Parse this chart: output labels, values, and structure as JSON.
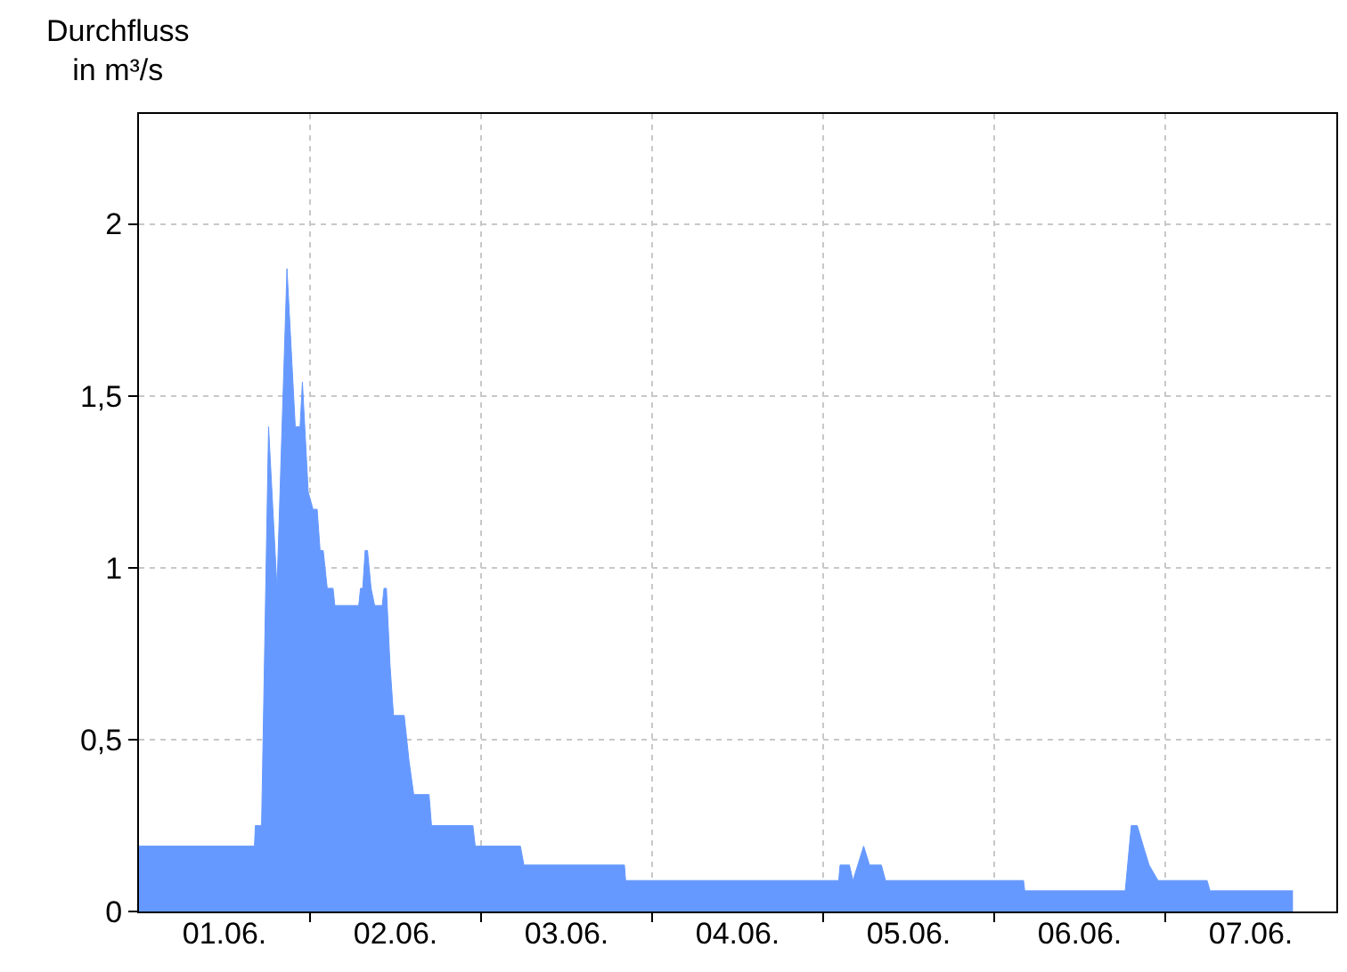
{
  "chart_data": {
    "type": "area",
    "ylabel": "Durchfluss\nin m³/s",
    "x": [
      "--06-01T00:00",
      "--06-01T16:12",
      "--06-01T16:20",
      "--06-01T17:12",
      "--06-01T18:11",
      "--06-01T19:22",
      "--06-01T20:46",
      "--06-01T21:56",
      "--06-01T22:36",
      "--06-01T22:56",
      "--06-01T23:45",
      "--06-02T00:25",
      "--06-02T01:00",
      "--06-02T01:25",
      "--06-02T01:51",
      "--06-02T02:25",
      "--06-02T03:14",
      "--06-02T03:29",
      "--06-02T06:50",
      "--06-02T07:05",
      "--06-02T07:24",
      "--06-02T07:44",
      "--06-02T08:04",
      "--06-02T08:34",
      "--06-02T09:04",
      "--06-02T10:08",
      "--06-02T10:23",
      "--06-02T10:43",
      "--06-02T11:13",
      "--06-02T11:43",
      "--06-02T13:13",
      "--06-02T13:53",
      "--06-02T14:33",
      "--06-02T16:42",
      "--06-02T17:03",
      "--06-02T22:51",
      "--06-02T23:11",
      "--06-03T05:31",
      "--06-03T06:01",
      "--06-03T20:07",
      "--06-03T20:17",
      "--06-05T02:11",
      "--06-05T02:22",
      "--06-05T03:41",
      "--06-05T04:11",
      "--06-05T05:41",
      "--06-05T06:30",
      "--06-05T08:10",
      "--06-05T08:45",
      "--06-06T04:07",
      "--06-06T04:17",
      "--06-06T18:23",
      "--06-06T19:14",
      "--06-06T20:04",
      "--06-06T21:04",
      "--06-06T21:44",
      "--06-06T22:59",
      "--06-07T05:52",
      "--06-07T06:17",
      "--06-07T17:55"
    ],
    "series": [
      {
        "color": "#6699ff",
        "values": [
          0.19,
          0.19,
          0.25,
          0.25,
          1.41,
          0.94,
          1.87,
          1.41,
          1.41,
          1.54,
          1.22,
          1.17,
          1.17,
          1.05,
          1.05,
          0.94,
          0.94,
          0.89,
          0.89,
          0.94,
          0.94,
          1.05,
          1.05,
          0.94,
          0.89,
          0.89,
          0.94,
          0.94,
          0.72,
          0.57,
          0.57,
          0.44,
          0.34,
          0.34,
          0.25,
          0.25,
          0.19,
          0.19,
          0.135,
          0.135,
          0.09,
          0.09,
          0.135,
          0.135,
          0.09,
          0.19,
          0.135,
          0.135,
          0.09,
          0.09,
          0.06,
          0.06,
          0.25,
          0.25,
          0.18,
          0.135,
          0.09,
          0.09,
          0.06,
          0.06
        ]
      }
    ],
    "xlim": [
      "--06-01",
      "--06-08"
    ],
    "xticks": [
      {
        "value": "--06-01T12:00",
        "label": "01.06."
      },
      {
        "value": "--06-02",
        "label": null
      },
      {
        "value": "--06-02T12:00",
        "label": "02.06."
      },
      {
        "value": "--06-03",
        "label": null
      },
      {
        "value": "--06-03T12:00",
        "label": "03.06."
      },
      {
        "value": "--06-04",
        "label": null
      },
      {
        "value": "--06-04T12:00",
        "label": "04.06."
      },
      {
        "value": "--06-05",
        "label": null
      },
      {
        "value": "--06-05T12:00",
        "label": "05.06."
      },
      {
        "value": "--06-06",
        "label": null
      },
      {
        "value": "--06-06T12:00",
        "label": "06.06."
      },
      {
        "value": "--06-07",
        "label": null
      },
      {
        "value": "--06-07T12:00",
        "label": "07.06."
      }
    ],
    "ylim": [
      0,
      2.32
    ],
    "yticks": [
      0,
      {
        "value": 0.5,
        "label": "0,5"
      },
      1,
      {
        "value": 1.5,
        "label": "1,5"
      },
      2
    ],
    "grid": true
  }
}
